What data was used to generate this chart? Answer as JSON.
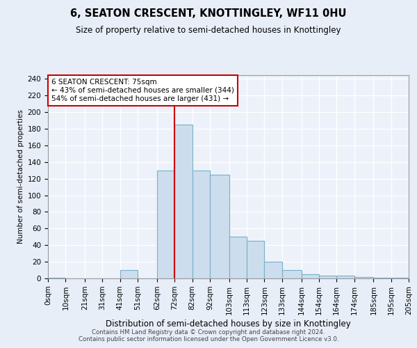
{
  "title": "6, SEATON CRESCENT, KNOTTINGLEY, WF11 0HU",
  "subtitle": "Size of property relative to semi-detached houses in Knottingley",
  "xlabel": "Distribution of semi-detached houses by size in Knottingley",
  "ylabel": "Number of semi-detached properties",
  "bar_color": "#ccdded",
  "bar_edge_color": "#7aafc8",
  "vline_color": "#cc0000",
  "vline_x": 72,
  "annotation_text": "6 SEATON CRESCENT: 75sqm\n← 43% of semi-detached houses are smaller (344)\n54% of semi-detached houses are larger (431) →",
  "annotation_box_color": "#cc0000",
  "tick_labels": [
    "0sqm",
    "10sqm",
    "21sqm",
    "31sqm",
    "41sqm",
    "51sqm",
    "62sqm",
    "72sqm",
    "82sqm",
    "92sqm",
    "103sqm",
    "113sqm",
    "123sqm",
    "133sqm",
    "144sqm",
    "154sqm",
    "164sqm",
    "174sqm",
    "185sqm",
    "195sqm",
    "205sqm"
  ],
  "bin_edges": [
    0,
    10,
    21,
    31,
    41,
    51,
    62,
    72,
    82,
    92,
    103,
    113,
    123,
    133,
    144,
    154,
    164,
    174,
    185,
    195,
    205
  ],
  "bar_heights": [
    1,
    0,
    0,
    0,
    10,
    0,
    130,
    185,
    130,
    125,
    50,
    45,
    20,
    10,
    5,
    3,
    3,
    2,
    1,
    1
  ],
  "ylim": [
    0,
    245
  ],
  "yticks": [
    0,
    20,
    40,
    60,
    80,
    100,
    120,
    140,
    160,
    180,
    200,
    220,
    240
  ],
  "background_color": "#e8eef8",
  "plot_background": "#edf2fa",
  "footer_text": "Contains HM Land Registry data © Crown copyright and database right 2024.\nContains public sector information licensed under the Open Government Licence v3.0.",
  "title_fontsize": 10.5,
  "subtitle_fontsize": 8.5,
  "xlabel_fontsize": 8.5,
  "ylabel_fontsize": 7.5,
  "tick_fontsize": 7.5,
  "annot_fontsize": 7.5
}
